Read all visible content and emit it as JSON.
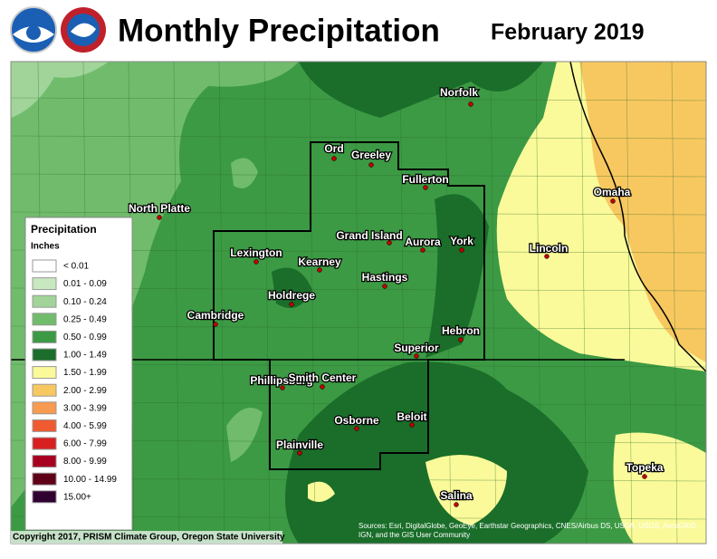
{
  "header": {
    "title": "Monthly Precipitation",
    "date": "February 2019"
  },
  "legend": {
    "title": "Precipitation",
    "units": "Inches",
    "items": [
      {
        "label": "< 0.01",
        "color": "#ffffff"
      },
      {
        "label": "0.01 - 0.09",
        "color": "#c8e8c0"
      },
      {
        "label": "0.10 - 0.24",
        "color": "#a0d498"
      },
      {
        "label": "0.25 - 0.49",
        "color": "#70bc6c"
      },
      {
        "label": "0.50 - 0.99",
        "color": "#3c9a44"
      },
      {
        "label": "1.00 - 1.49",
        "color": "#1a6e2a"
      },
      {
        "label": "1.50 - 1.99",
        "color": "#fafa9a"
      },
      {
        "label": "2.00 - 2.99",
        "color": "#f8c860"
      },
      {
        "label": "3.00 - 3.99",
        "color": "#f89a50"
      },
      {
        "label": "4.00 - 5.99",
        "color": "#f05a30"
      },
      {
        "label": "6.00 - 7.99",
        "color": "#d82020"
      },
      {
        "label": "8.00 - 9.99",
        "color": "#a80020"
      },
      {
        "label": "10.00 - 14.99",
        "color": "#600018"
      },
      {
        "label": "15.00+",
        "color": "#300030"
      }
    ]
  },
  "cities": [
    "Norfolk",
    "Ord",
    "Greeley",
    "Fullerton",
    "North Platte",
    "Omaha",
    "Grand Island",
    "Aurora",
    "York",
    "Lincoln",
    "Lexington",
    "Kearney",
    "Hastings",
    "Holdrege",
    "Cambridge",
    "Hebron",
    "Superior",
    "Phillipsburg",
    "Smith Center",
    "Beloit",
    "Osborne",
    "Plainville",
    "Topeka",
    "Salina"
  ],
  "footer": {
    "copyright": "Copyright 2017, PRISM Climate Group, Oregon State University",
    "sources": "Sources: Esri, DigitalGlobe, GeoEye, Earthstar Geographics, CNES/Airbus DS, USDA, USGS, AeroGRID, IGN, and the GIS User Community"
  }
}
